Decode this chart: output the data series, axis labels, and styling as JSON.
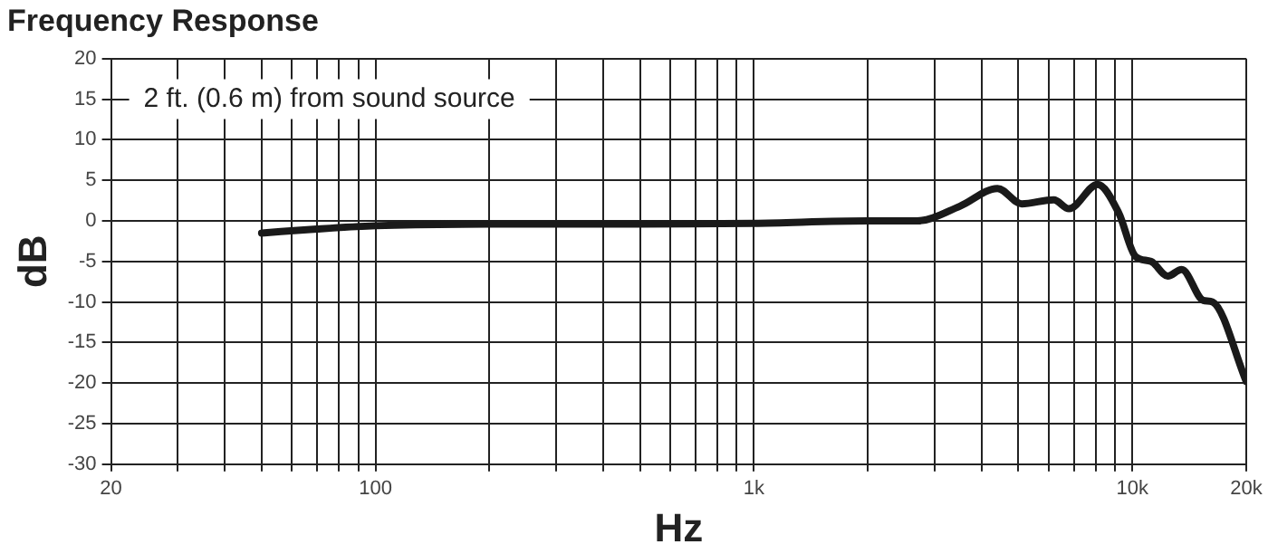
{
  "chart_data": {
    "type": "line",
    "title": "Frequency Response",
    "xlabel": "Hz",
    "ylabel": "dB",
    "annotations": [
      "2 ft. (0.6 m) from sound source"
    ],
    "x": [
      50,
      70,
      100,
      200,
      500,
      1000,
      2000,
      2700,
      3500,
      4400,
      5100,
      6200,
      6800,
      8100,
      9200,
      10200,
      11200,
      12400,
      13500,
      15400,
      16300,
      20000
    ],
    "series": [
      {
        "color": "#1a1a1a",
        "values": [
          -1.5,
          -1,
          -0.6,
          -0.4,
          -0.4,
          -0.3,
          0,
          0,
          1.8,
          4,
          2.1,
          2.6,
          1.5,
          4.5,
          1,
          -4.4,
          -5,
          -6.8,
          -6,
          -9.8,
          -10,
          -19.8
        ]
      }
    ],
    "log": "x",
    "xlim": [
      20,
      20000
    ],
    "xticks": [
      20,
      {
        "value": 30,
        "label": null
      },
      {
        "value": 40,
        "label": null
      },
      {
        "value": 50,
        "label": null
      },
      {
        "value": 60,
        "label": null
      },
      {
        "value": 70,
        "label": null
      },
      {
        "value": 80,
        "label": null
      },
      {
        "value": 90,
        "label": null
      },
      100,
      {
        "value": 200,
        "label": null
      },
      {
        "value": 300,
        "label": null
      },
      {
        "value": 400,
        "label": null
      },
      {
        "value": 500,
        "label": null
      },
      {
        "value": 600,
        "label": null
      },
      {
        "value": 700,
        "label": null
      },
      {
        "value": 800,
        "label": null
      },
      {
        "value": 900,
        "label": null
      },
      {
        "value": 1000,
        "label": "1k"
      },
      {
        "value": 2000,
        "label": null
      },
      {
        "value": 3000,
        "label": null
      },
      {
        "value": 4000,
        "label": null
      },
      {
        "value": 5000,
        "label": null
      },
      {
        "value": 6000,
        "label": null
      },
      {
        "value": 7000,
        "label": null
      },
      {
        "value": 8000,
        "label": null
      },
      {
        "value": 9000,
        "label": null
      },
      {
        "value": 10000,
        "label": "10k"
      },
      {
        "value": 20000,
        "label": "20k"
      }
    ],
    "ylim": [
      -30,
      20
    ],
    "yticks": [
      -30,
      -25,
      -20,
      -15,
      -10,
      -5,
      0,
      5,
      10,
      15,
      20
    ],
    "grid": true,
    "legend": false,
    "marker": "none",
    "line_style": "solid"
  }
}
